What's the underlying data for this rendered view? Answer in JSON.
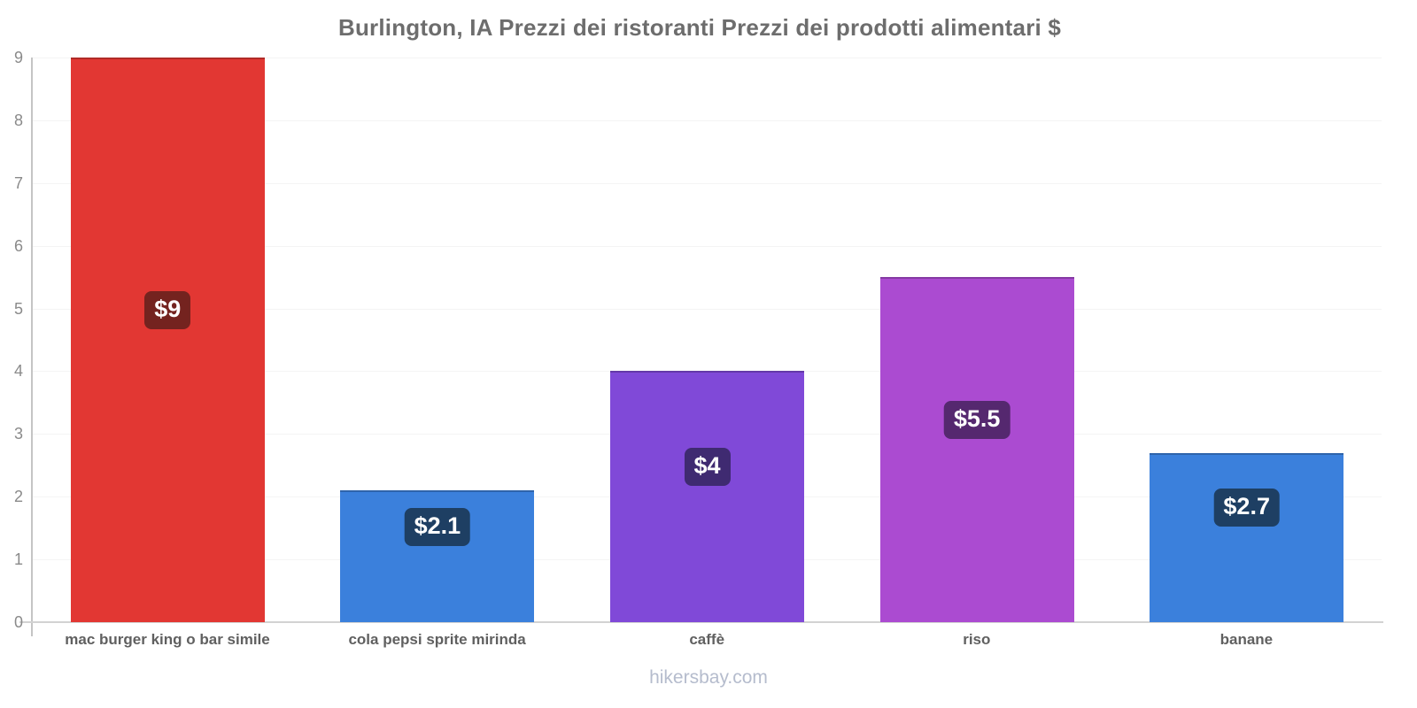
{
  "title": "Burlington, IA Prezzi dei ristoranti Prezzi dei prodotti alimentari $",
  "footer": "hikersbay.com",
  "chart_data": {
    "type": "bar",
    "title": "Burlington, IA Prezzi dei ristoranti Prezzi dei prodotti alimentari $",
    "categories": [
      "mac burger king o bar simile",
      "cola pepsi sprite mirinda",
      "caffè",
      "riso",
      "banane"
    ],
    "values": [
      9,
      2.1,
      4,
      5.5,
      2.7
    ],
    "value_labels": [
      "$9",
      "$2.1",
      "$4",
      "$5.5",
      "$2.7"
    ],
    "bar_colors": [
      "#e23733",
      "#3b80dc",
      "#8049d8",
      "#ab4bd1",
      "#3b80dc"
    ],
    "badge_colors": [
      "#74231f",
      "#1e3f63",
      "#3f2a71",
      "#55286f",
      "#1e3f63"
    ],
    "xlabel": "",
    "ylabel": "",
    "ylim": [
      0,
      9
    ],
    "yticks": [
      0,
      1,
      2,
      3,
      4,
      5,
      6,
      7,
      8,
      9
    ],
    "grid": true,
    "legend_position": "none",
    "currency_symbol": "$"
  },
  "colors": {
    "background": "#ffffff",
    "title_text": "#6d6d6d",
    "axis_line": "#c4c4c4",
    "tick_text": "#8a8a8a",
    "category_text": "#606060",
    "footer_text": "#b5bccd",
    "gridline": "#f4f4f4"
  }
}
